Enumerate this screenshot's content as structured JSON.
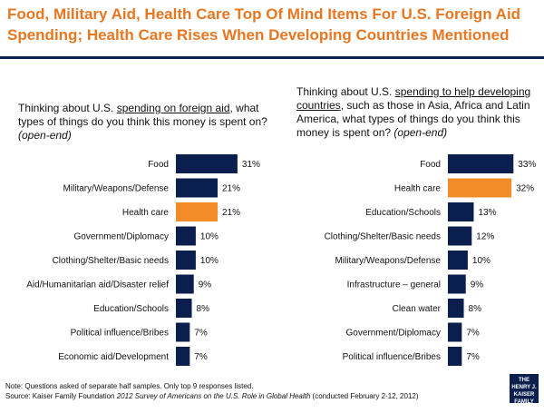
{
  "title": "Food, Military Aid, Health Care Top Of Mind Items For U.S. Foreign Aid Spending; Health Care Rises When Developing Countries Mentioned",
  "left_question": {
    "pre": "Thinking about U.S. ",
    "underlined": "spending on foreign aid",
    "post": ", what types of things do you think this money is spent on? ",
    "italic": "(open-end)"
  },
  "right_question": {
    "pre": "Thinking about U.S. ",
    "underlined": "spending to help developing countries",
    "post": ", such as those in Asia, Africa and Latin America, what types of things do you think this money is spent on? ",
    "italic": "(open-end)"
  },
  "footer": {
    "note": "Note: Questions asked of separate half samples. Only top 9 responses listed.",
    "source_pre": "Source: Kaiser Family Foundation ",
    "source_italic": "2012 Survey of Americans on the U.S. Role in Global Health",
    "source_post": " (conducted February 2-12, 2012)"
  },
  "logo": {
    "line1": "THE HENRY J.",
    "line2": "KAISER",
    "line3": "FAMILY",
    "line4": "FOUNDATION"
  },
  "colors": {
    "navy": "#0a1f4d",
    "orange": "#f28c28",
    "title": "#e87722"
  },
  "chart_data": [
    {
      "type": "bar",
      "orientation": "horizontal",
      "categories": [
        "Food",
        "Military/Weapons/Defense",
        "Health care",
        "Government/Diplomacy",
        "Clothing/Shelter/Basic needs",
        "Aid/Humanitarian aid/Disaster relief",
        "Education/Schools",
        "Political influence/Bribes",
        "Economic aid/Development"
      ],
      "values": [
        31,
        21,
        21,
        10,
        10,
        9,
        8,
        7,
        7
      ],
      "labels": [
        "31%",
        "21%",
        "21%",
        "10%",
        "10%",
        "9%",
        "8%",
        "7%",
        "7%"
      ],
      "highlight": "Health care",
      "xlim": [
        0,
        35
      ]
    },
    {
      "type": "bar",
      "orientation": "horizontal",
      "categories": [
        "Food",
        "Health care",
        "Education/Schools",
        "Clothing/Shelter/Basic needs",
        "Military/Weapons/Defense",
        "Infrastructure – general",
        "Clean water",
        "Government/Diplomacy",
        "Political influence/Bribes"
      ],
      "values": [
        33,
        32,
        13,
        12,
        10,
        9,
        8,
        7,
        7
      ],
      "labels": [
        "33%",
        "32%",
        "13%",
        "12%",
        "10%",
        "9%",
        "8%",
        "7%",
        "7%"
      ],
      "highlight": "Health care",
      "xlim": [
        0,
        35
      ]
    }
  ]
}
